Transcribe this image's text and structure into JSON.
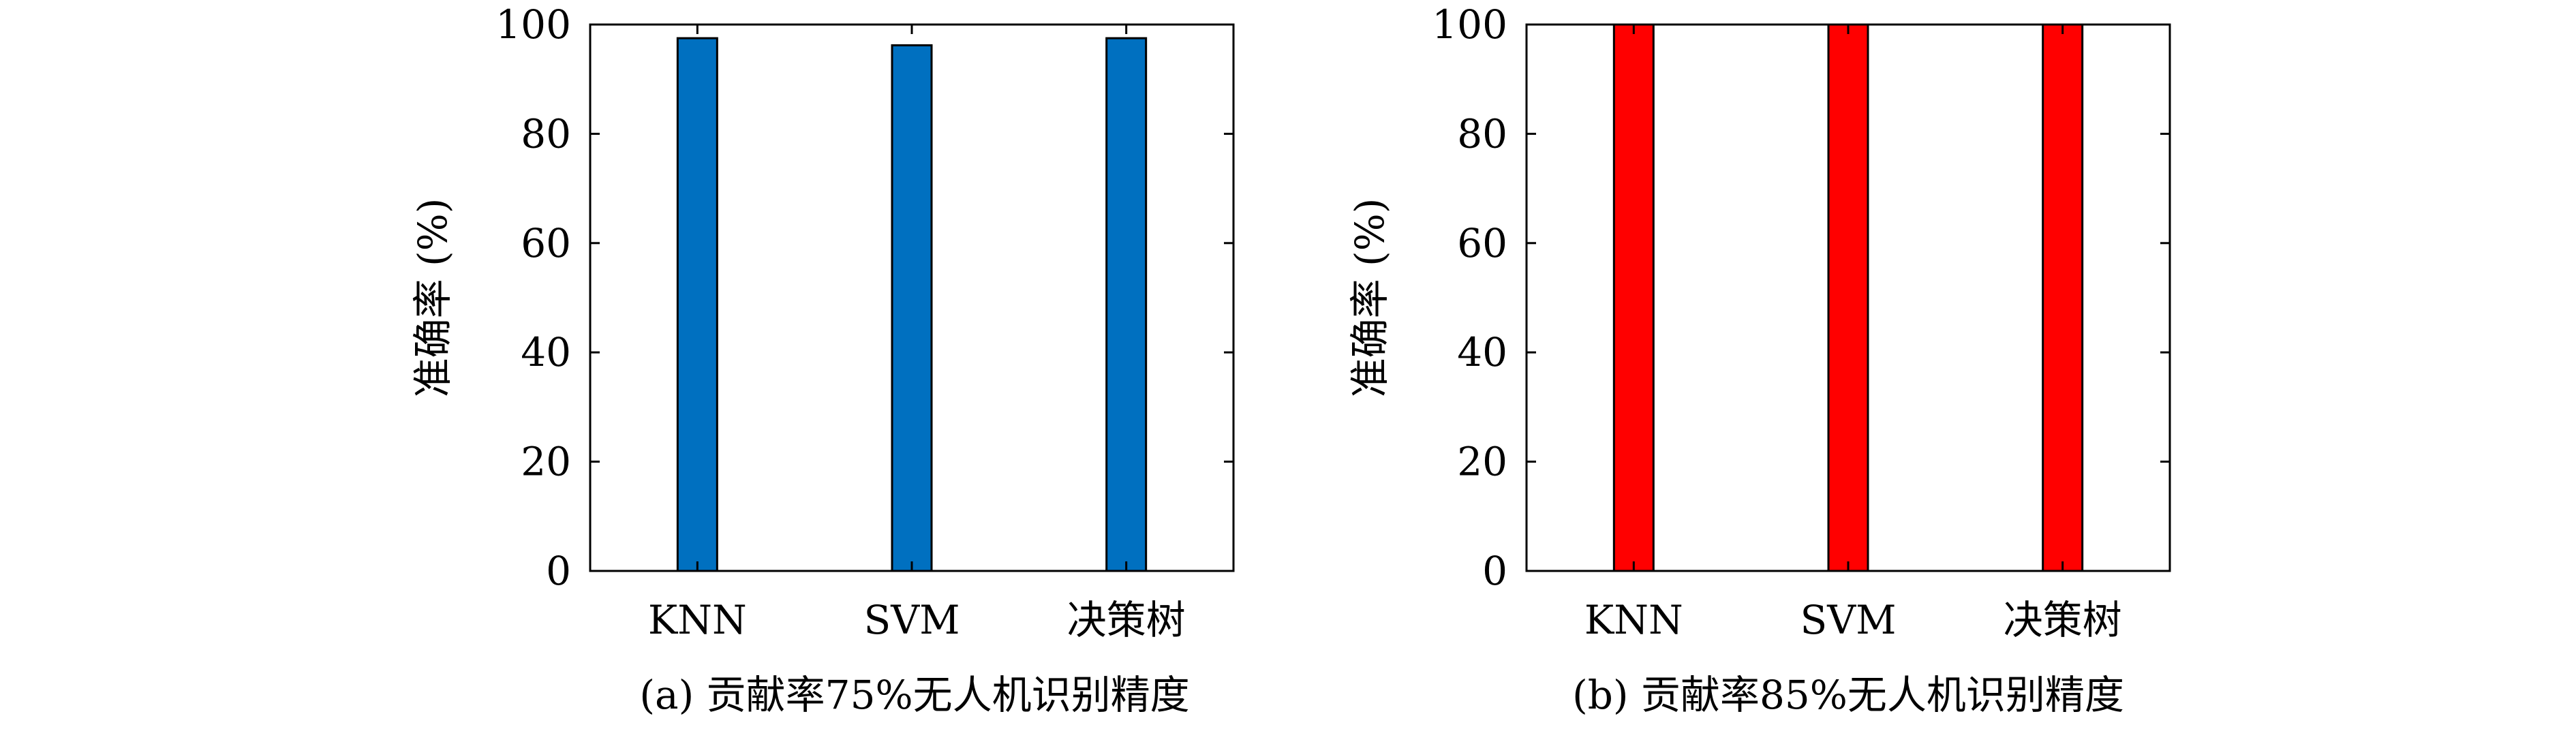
{
  "chart_data": [
    {
      "type": "bar",
      "caption": "(a) 贡献率75%无人机识别精度",
      "categories": [
        "KNN",
        "SVM",
        "决策树"
      ],
      "values": [
        97.5,
        96.2,
        97.5
      ],
      "ylabel": "准确率 (%)",
      "xlabel": "",
      "ylim": [
        0,
        100
      ],
      "yticks": [
        0,
        20,
        40,
        60,
        80,
        100
      ],
      "grid": false,
      "bar_color": "#0070C0"
    },
    {
      "type": "bar",
      "caption": "(b) 贡献率85%无人机识别精度",
      "categories": [
        "KNN",
        "SVM",
        "决策树"
      ],
      "values": [
        100,
        100,
        100
      ],
      "ylabel": "准确率 (%)",
      "xlabel": "",
      "ylim": [
        0,
        100
      ],
      "yticks": [
        0,
        20,
        40,
        60,
        80,
        100
      ],
      "grid": false,
      "bar_color": "#FF0000"
    }
  ]
}
